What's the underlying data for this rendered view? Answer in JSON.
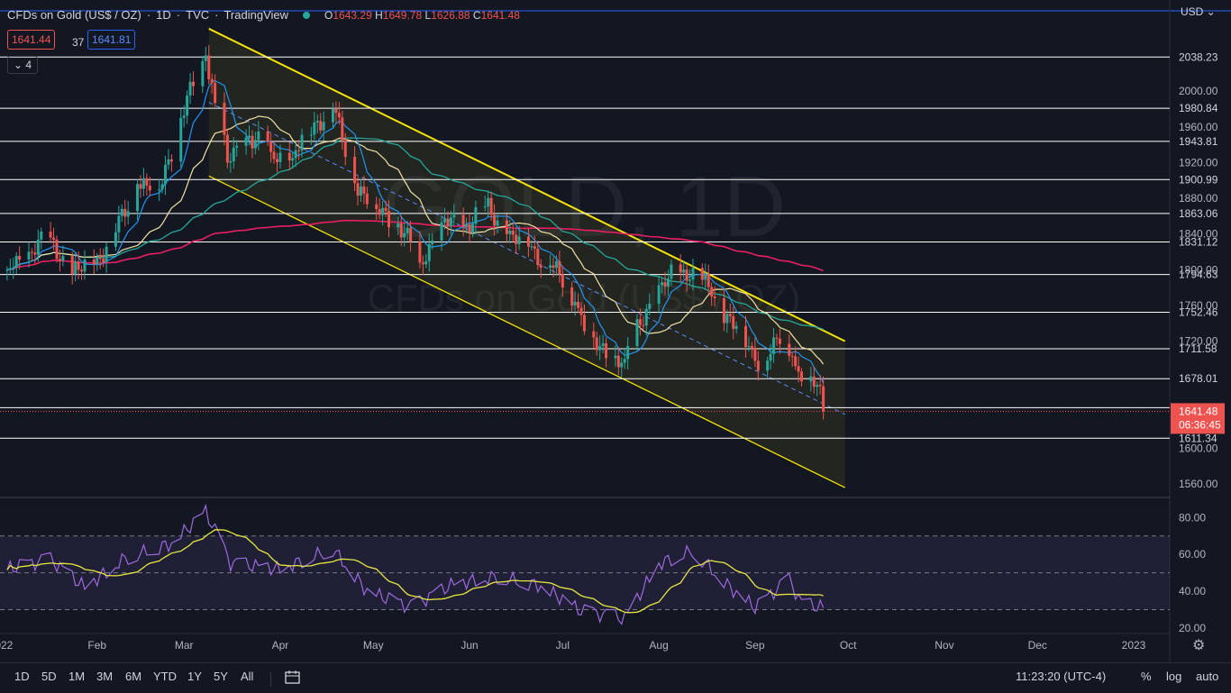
{
  "header": {
    "symbol": "CFDs on Gold (US$ / OZ)",
    "interval": "1D",
    "exchange": "TVC",
    "provider": "TradingView",
    "ohlc": {
      "o_label": "O",
      "o": "1643.29",
      "h_label": "H",
      "h": "1649.78",
      "l_label": "L",
      "l": "1626.88",
      "c_label": "C",
      "c": "1641.48"
    },
    "bid": "1641.44",
    "spread": "37",
    "ask": "1641.81",
    "indicator_count": "4",
    "currency": "USD"
  },
  "colors": {
    "background": "#131722",
    "up": "#26a69a",
    "down": "#ef5350",
    "channel": "#f5e20a",
    "sma200": "#e91e63",
    "sma50": "#26a69a",
    "sma20": "#f2e2a4",
    "ema10": "#2196f3",
    "rsi": "#9c6ade",
    "rsi_ma": "#e8e842"
  },
  "watermark": {
    "symbol": "GOLD",
    "interval": "1D",
    "name": "CFDs on Gold (US$ / OZ)"
  },
  "chart_data": [
    {
      "type": "candlestick",
      "ylim": [
        1545,
        2090
      ],
      "x_axis_labels": [
        "2022",
        "Feb",
        "Mar",
        "Apr",
        "May",
        "Jun",
        "Jul",
        "Aug",
        "Sep",
        "Oct",
        "Nov",
        "Dec",
        "2023"
      ],
      "y_ticks": [
        "2000.00",
        "1960.00",
        "1920.00",
        "1880.00",
        "1840.00",
        "1800.00",
        "1760.00",
        "1720.00",
        "1600.00",
        "1560.00"
      ],
      "horizontal_levels": [
        "2038.23",
        "1980.84",
        "1943.81",
        "1900.99",
        "1863.06",
        "1831.12",
        "1794.63",
        "1752.46",
        "1711.58",
        "1678.01",
        "1645.50",
        "1611.34"
      ],
      "last_price": "1641.48",
      "countdown": "06:36:45",
      "key_points": [
        {
          "date": "2022-01-03",
          "close": 1800
        },
        {
          "date": "2022-01-10",
          "close": 1820
        },
        {
          "date": "2022-01-17",
          "close": 1836
        },
        {
          "date": "2022-01-24",
          "close": 1795
        },
        {
          "date": "2022-01-31",
          "close": 1806
        },
        {
          "date": "2022-02-07",
          "close": 1842
        },
        {
          "date": "2022-02-14",
          "close": 1896
        },
        {
          "date": "2022-02-21",
          "close": 1890
        },
        {
          "date": "2022-02-28",
          "close": 1970
        },
        {
          "date": "2022-03-08",
          "close": 2040
        },
        {
          "date": "2022-03-15",
          "close": 1920
        },
        {
          "date": "2022-03-22",
          "close": 1950
        },
        {
          "date": "2022-03-29",
          "close": 1932
        },
        {
          "date": "2022-04-05",
          "close": 1925
        },
        {
          "date": "2022-04-12",
          "close": 1965
        },
        {
          "date": "2022-04-18",
          "close": 1980
        },
        {
          "date": "2022-04-25",
          "close": 1897
        },
        {
          "date": "2022-05-02",
          "close": 1868
        },
        {
          "date": "2022-05-09",
          "close": 1852
        },
        {
          "date": "2022-05-16",
          "close": 1808
        },
        {
          "date": "2022-05-23",
          "close": 1853
        },
        {
          "date": "2022-05-30",
          "close": 1848
        },
        {
          "date": "2022-06-06",
          "close": 1871
        },
        {
          "date": "2022-06-13",
          "close": 1840
        },
        {
          "date": "2022-06-20",
          "close": 1826
        },
        {
          "date": "2022-06-27",
          "close": 1805
        },
        {
          "date": "2022-07-05",
          "close": 1764
        },
        {
          "date": "2022-07-12",
          "close": 1710
        },
        {
          "date": "2022-07-21",
          "close": 1700
        },
        {
          "date": "2022-07-28",
          "close": 1756
        },
        {
          "date": "2022-08-04",
          "close": 1790
        },
        {
          "date": "2022-08-12",
          "close": 1802
        },
        {
          "date": "2022-08-18",
          "close": 1770
        },
        {
          "date": "2022-08-26",
          "close": 1737
        },
        {
          "date": "2022-09-01",
          "close": 1698
        },
        {
          "date": "2022-09-09",
          "close": 1717
        },
        {
          "date": "2022-09-13",
          "close": 1703
        },
        {
          "date": "2022-09-16",
          "close": 1675
        },
        {
          "date": "2022-09-21",
          "close": 1671
        },
        {
          "date": "2022-09-23",
          "close": 1641.48
        }
      ]
    },
    {
      "type": "line",
      "name": "RSI",
      "ylim": [
        17,
        87
      ],
      "y_ticks": [
        "80.00",
        "60.00",
        "40.00",
        "20.00"
      ],
      "bands": [
        70,
        50,
        30
      ],
      "key_points": [
        {
          "date": "2022-01-03",
          "rsi": 52
        },
        {
          "date": "2022-01-17",
          "rsi": 57
        },
        {
          "date": "2022-01-28",
          "rsi": 42
        },
        {
          "date": "2022-02-10",
          "rsi": 58
        },
        {
          "date": "2022-02-25",
          "rsi": 66
        },
        {
          "date": "2022-03-08",
          "rsi": 83
        },
        {
          "date": "2022-03-16",
          "rsi": 55
        },
        {
          "date": "2022-04-01",
          "rsi": 52
        },
        {
          "date": "2022-04-18",
          "rsi": 63
        },
        {
          "date": "2022-04-29",
          "rsi": 40
        },
        {
          "date": "2022-05-13",
          "rsi": 31
        },
        {
          "date": "2022-05-27",
          "rsi": 44
        },
        {
          "date": "2022-06-10",
          "rsi": 48
        },
        {
          "date": "2022-06-24",
          "rsi": 43
        },
        {
          "date": "2022-07-07",
          "rsi": 29
        },
        {
          "date": "2022-07-21",
          "rsi": 25
        },
        {
          "date": "2022-08-01",
          "rsi": 55
        },
        {
          "date": "2022-08-12",
          "rsi": 62
        },
        {
          "date": "2022-08-24",
          "rsi": 42
        },
        {
          "date": "2022-09-01",
          "rsi": 31
        },
        {
          "date": "2022-09-12",
          "rsi": 46
        },
        {
          "date": "2022-09-16",
          "rsi": 33
        },
        {
          "date": "2022-09-23",
          "rsi": 31
        }
      ]
    }
  ],
  "timeframes": [
    "1D",
    "5D",
    "1M",
    "3M",
    "6M",
    "YTD",
    "1Y",
    "5Y",
    "All"
  ],
  "clock": "11:23:20 (UTC-4)",
  "bottom_right": {
    "percent": "%",
    "log": "log",
    "auto": "auto"
  }
}
